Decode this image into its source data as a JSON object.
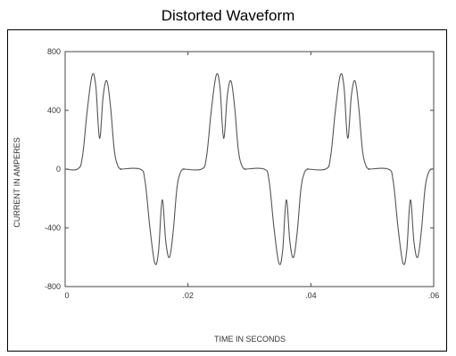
{
  "page_title": "Distorted Waveform",
  "chart_data": {
    "type": "line",
    "xlabel": "TIME IN SECONDS",
    "ylabel": "CURRENT IN AMPERES",
    "xlim": [
      0,
      0.06
    ],
    "ylim": [
      -800,
      800
    ],
    "x_ticks": [
      "0",
      ".02",
      ".04",
      ".06"
    ],
    "y_ticks": [
      "800",
      "400",
      "0",
      "-400",
      "-800"
    ],
    "grid": false,
    "series": [
      {
        "line_color": "#555555",
        "x": [
          0,
          0.002,
          0.0028,
          0.0036,
          0.0044,
          0.005,
          0.0056,
          0.0062,
          0.0068,
          0.0074,
          0.008,
          0.0086,
          0.0092,
          0.0092,
          0.0122,
          0.013,
          0.0138,
          0.0146,
          0.0152,
          0.0158,
          0.0164,
          0.017,
          0.0176,
          0.0182,
          0.0188,
          0.0194,
          0.0194,
          0.0222,
          0.023,
          0.0238,
          0.0246,
          0.0252,
          0.0258,
          0.0264,
          0.027,
          0.0276,
          0.0282,
          0.0288,
          0.0294,
          0.0294,
          0.0324,
          0.0332,
          0.034,
          0.0348,
          0.0354,
          0.036,
          0.0366,
          0.0372,
          0.0378,
          0.0384,
          0.039,
          0.0396,
          0.0396,
          0.0424,
          0.0432,
          0.044,
          0.0448,
          0.0454,
          0.046,
          0.0466,
          0.0472,
          0.0478,
          0.0484,
          0.049,
          0.0496,
          0.0496,
          0.0526,
          0.0534,
          0.0542,
          0.055,
          0.0556,
          0.0562,
          0.0568,
          0.0574,
          0.058,
          0.0586,
          0.0592,
          0.0598,
          0.0598,
          0.06
        ],
        "y": [
          0,
          0,
          80,
          400,
          640,
          560,
          210,
          500,
          600,
          420,
          130,
          20,
          0,
          0,
          0,
          -80,
          -400,
          -640,
          -560,
          -210,
          -500,
          -600,
          -420,
          -130,
          -20,
          0,
          0,
          0,
          80,
          400,
          640,
          560,
          210,
          500,
          600,
          420,
          130,
          20,
          0,
          0,
          0,
          -80,
          -400,
          -640,
          -560,
          -210,
          -500,
          -600,
          -420,
          -130,
          -20,
          0,
          0,
          0,
          80,
          400,
          640,
          560,
          210,
          500,
          600,
          420,
          130,
          20,
          0,
          0,
          0,
          -80,
          -400,
          -640,
          -560,
          -210,
          -500,
          -600,
          -420,
          -130,
          -20,
          0,
          0,
          0
        ]
      }
    ]
  }
}
